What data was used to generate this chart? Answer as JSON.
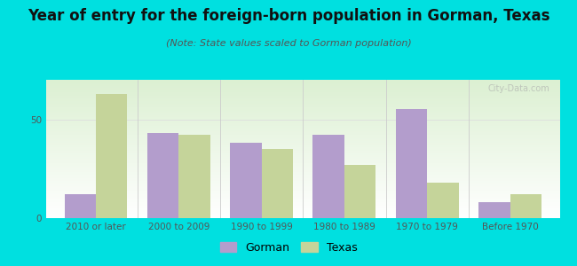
{
  "title": "Year of entry for the foreign-born population in Gorman, Texas",
  "subtitle": "(Note: State values scaled to Gorman population)",
  "categories": [
    "2010 or later",
    "2000 to 2009",
    "1990 to 1999",
    "1980 to 1989",
    "1970 to 1979",
    "Before 1970"
  ],
  "gorman_values": [
    12,
    43,
    38,
    42,
    55,
    8
  ],
  "texas_values": [
    63,
    42,
    35,
    27,
    18,
    12
  ],
  "gorman_color": "#b39dcc",
  "texas_color": "#c5d49a",
  "background_outer": "#00e0e0",
  "ylim": [
    0,
    70
  ],
  "yticks": [
    0,
    50
  ],
  "bar_width": 0.38,
  "title_fontsize": 12,
  "subtitle_fontsize": 8,
  "tick_fontsize": 7.5,
  "legend_fontsize": 9,
  "watermark": "City-Data.com"
}
